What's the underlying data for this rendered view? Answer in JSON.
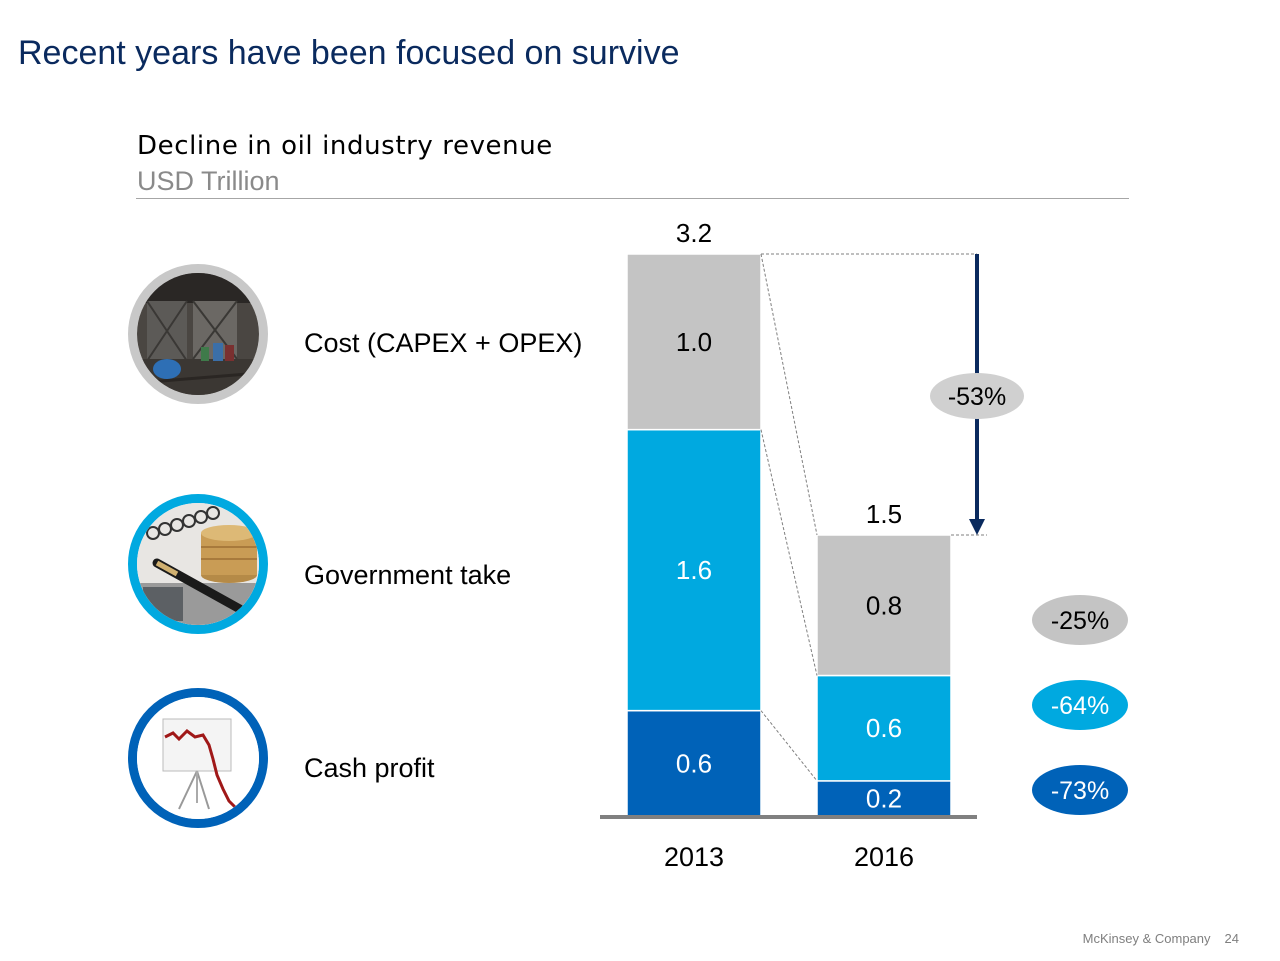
{
  "slide": {
    "title": "Recent years have been focused on survive"
  },
  "legend": {
    "items": [
      {
        "label": "Cost (CAPEX + OPEX)",
        "icon": "abandoned-warehouse-photo",
        "ring_color": "#c8c8c8"
      },
      {
        "label": "Government take",
        "icon": "coins-and-pen-photo",
        "ring_color": "#00a9e0"
      },
      {
        "label": "Cash profit",
        "icon": "falling-chart-easel-photo",
        "ring_color": "#0062b8"
      }
    ]
  },
  "chart_data": {
    "type": "bar",
    "stacked": true,
    "title": "Decline in oil industry revenue",
    "subtitle": "USD Trillion",
    "categories": [
      "2013",
      "2016"
    ],
    "series": [
      {
        "name": "Cash profit",
        "values": [
          0.6,
          0.2
        ],
        "color": "#0062b8",
        "label_color": "#ffffff",
        "change": "-73%"
      },
      {
        "name": "Government take",
        "values": [
          1.6,
          0.6
        ],
        "color": "#00a9e0",
        "label_color": "#ffffff",
        "change": "-64%"
      },
      {
        "name": "Cost (CAPEX + OPEX)",
        "values": [
          1.0,
          0.8
        ],
        "color": "#c4c4c4",
        "label_color": "#000000",
        "change": "-25%"
      }
    ],
    "totals": [
      "3.2",
      "1.5"
    ],
    "value_labels": [
      [
        "0.6",
        "1.6",
        "1.0"
      ],
      [
        "0.2",
        "0.6",
        "0.8"
      ]
    ],
    "total_change": "-53%",
    "ylim": [
      0,
      3.2
    ]
  },
  "footer": {
    "company": "McKinsey & Company",
    "page": "24"
  }
}
